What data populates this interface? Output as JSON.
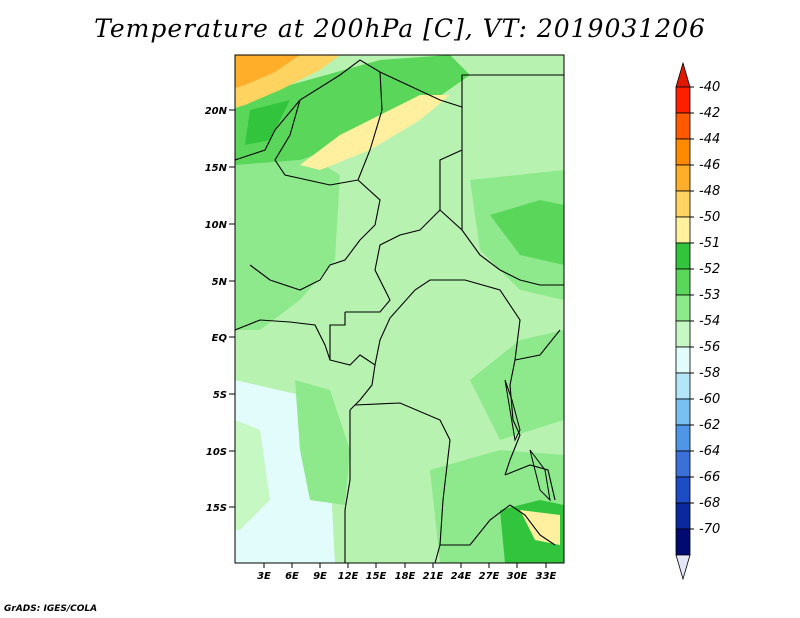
{
  "title": "Temperature at 200hPa [C], VT: 2019031206",
  "credit": "GrADS: IGES/COLA",
  "map": {
    "lat_ticks": [
      "20N",
      "15N",
      "10N",
      "5N",
      "EQ",
      "5S",
      "10S",
      "15S"
    ],
    "lon_ticks": [
      "3E",
      "6E",
      "9E",
      "12E",
      "15E",
      "18E",
      "21E",
      "24E",
      "27E",
      "30E",
      "33E"
    ]
  },
  "colorbar": {
    "labels": [
      "-40",
      "-42",
      "-44",
      "-46",
      "-48",
      "-50",
      "-51",
      "-52",
      "-53",
      "-54",
      "-56",
      "-58",
      "-60",
      "-62",
      "-64",
      "-66",
      "-68",
      "-70"
    ],
    "colors": [
      "#ff2000",
      "#ff5a00",
      "#ff8a00",
      "#ffae2a",
      "#ffd360",
      "#fff0a0",
      "#31c43c",
      "#5ad75a",
      "#8ee98c",
      "#c6f8c4",
      "#e2fcfc",
      "#b4e6fa",
      "#78c0f0",
      "#5096e6",
      "#3a70d8",
      "#1e4cc4",
      "#0a28a0",
      "#000a70"
    ],
    "top_arrow_color": "#e01800",
    "bottom_arrow_color": "#e6e6fa"
  }
}
